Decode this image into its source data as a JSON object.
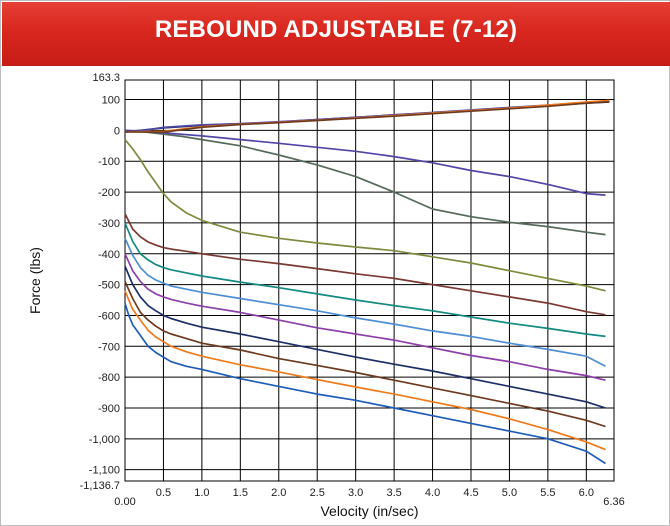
{
  "header": {
    "title": "REBOUND ADJUSTABLE (7-12)"
  },
  "colors": {
    "banner": "#d8271f",
    "grid": "#000000"
  },
  "chart_data": {
    "type": "line",
    "title": "REBOUND ADJUSTABLE (7-12)",
    "xlabel": "Velocity (in/sec)",
    "ylabel": "Force (lbs)",
    "xlim": [
      0,
      6.36
    ],
    "ylim": [
      -1136.7,
      163.3
    ],
    "x_ticks": [
      0,
      0.5,
      1.0,
      1.5,
      2.0,
      2.5,
      3.0,
      3.5,
      4.0,
      4.5,
      5.0,
      5.5,
      6.0,
      6.36
    ],
    "x_tick_labels": [
      "0.00",
      "0.5",
      "1.0",
      "1.5",
      "2.0",
      "2.5",
      "3.0",
      "3.5",
      "4.0",
      "4.5",
      "5.0",
      "5.5",
      "6.0",
      "6.36"
    ],
    "y_ticks": [
      163.3,
      100,
      0,
      -100,
      -200,
      -300,
      -400,
      -500,
      -600,
      -700,
      -800,
      -900,
      -1000,
      -1100,
      -1136.7
    ],
    "y_tick_labels": [
      "163.3",
      "100",
      "0",
      "-100",
      "-200",
      "-300",
      "-400",
      "-500",
      "-600",
      "-700",
      "-800",
      "-900",
      "-1,000",
      "-1,100",
      "-1,136.7"
    ],
    "grid": true,
    "series": [
      {
        "color": "#1f5cb8",
        "x": [
          0,
          0.05,
          0.1,
          0.2,
          0.3,
          0.4,
          0.5,
          0.6,
          0.8,
          1.0,
          1.5,
          2,
          2.5,
          3,
          3.5,
          4,
          4.5,
          5,
          5.5,
          6,
          6.25
        ],
        "y": [
          -560,
          -600,
          -630,
          -665,
          -700,
          -720,
          -735,
          -750,
          -765,
          -775,
          -805,
          -830,
          -855,
          -875,
          -900,
          -925,
          -950,
          -975,
          -1000,
          -1040,
          -1080
        ]
      },
      {
        "color": "#f07a1a",
        "x": [
          0,
          0.1,
          0.2,
          0.3,
          0.4,
          0.5,
          0.6,
          0.8,
          1,
          1.5,
          2,
          2.5,
          3,
          3.5,
          4,
          4.5,
          5,
          5.5,
          6,
          6.25
        ],
        "y": [
          -520,
          -580,
          -615,
          -648,
          -670,
          -685,
          -700,
          -718,
          -732,
          -760,
          -783,
          -808,
          -832,
          -855,
          -880,
          -905,
          -935,
          -970,
          -1010,
          -1035
        ]
      },
      {
        "color": "#6e3a1e",
        "x": [
          0,
          0.1,
          0.2,
          0.3,
          0.4,
          0.5,
          0.6,
          0.8,
          1,
          1.5,
          2,
          2.5,
          3,
          3.5,
          4,
          4.5,
          5,
          5.5,
          6,
          6.25
        ],
        "y": [
          -490,
          -545,
          -590,
          -615,
          -635,
          -650,
          -660,
          -675,
          -690,
          -712,
          -740,
          -762,
          -785,
          -810,
          -835,
          -860,
          -885,
          -910,
          -940,
          -960
        ]
      },
      {
        "color": "#1c2f66",
        "x": [
          0,
          0.1,
          0.2,
          0.3,
          0.4,
          0.5,
          0.6,
          0.8,
          1,
          1.5,
          2,
          2.5,
          3,
          3.5,
          4,
          4.5,
          5,
          5.5,
          6,
          6.25
        ],
        "y": [
          -440,
          -500,
          -540,
          -568,
          -585,
          -600,
          -610,
          -625,
          -638,
          -660,
          -685,
          -710,
          -735,
          -758,
          -780,
          -805,
          -830,
          -855,
          -880,
          -900
        ]
      },
      {
        "color": "#8d3fa8",
        "x": [
          0,
          0.1,
          0.2,
          0.3,
          0.4,
          0.5,
          0.6,
          0.8,
          1,
          1.5,
          2,
          2.5,
          3,
          3.5,
          4,
          4.5,
          5,
          5.5,
          6,
          6.25
        ],
        "y": [
          -400,
          -455,
          -490,
          -515,
          -530,
          -540,
          -548,
          -560,
          -570,
          -590,
          -615,
          -640,
          -660,
          -680,
          -705,
          -730,
          -750,
          -775,
          -795,
          -810
        ]
      },
      {
        "color": "#4e8ed3",
        "x": [
          0,
          0.1,
          0.2,
          0.3,
          0.4,
          0.5,
          0.6,
          0.8,
          1,
          1.5,
          2,
          2.5,
          3,
          3.5,
          4,
          4.5,
          5,
          5.5,
          6,
          6.25
        ],
        "y": [
          -350,
          -405,
          -445,
          -470,
          -485,
          -495,
          -505,
          -515,
          -525,
          -545,
          -565,
          -585,
          -608,
          -628,
          -650,
          -668,
          -690,
          -710,
          -732,
          -765
        ]
      },
      {
        "color": "#138a82",
        "x": [
          0,
          0.1,
          0.2,
          0.3,
          0.4,
          0.5,
          0.6,
          0.8,
          1,
          1.5,
          2,
          2.5,
          3,
          3.5,
          4,
          4.5,
          5,
          5.5,
          6,
          6.25
        ],
        "y": [
          -300,
          -360,
          -400,
          -420,
          -435,
          -445,
          -452,
          -462,
          -472,
          -492,
          -510,
          -530,
          -550,
          -568,
          -585,
          -605,
          -625,
          -642,
          -660,
          -668
        ]
      },
      {
        "color": "#7a3a32",
        "x": [
          0,
          0.1,
          0.2,
          0.3,
          0.4,
          0.5,
          0.6,
          0.8,
          1,
          1.5,
          2,
          2.5,
          3,
          3.5,
          4,
          4.5,
          5,
          5.5,
          6,
          6.25
        ],
        "y": [
          -270,
          -320,
          -345,
          -362,
          -372,
          -380,
          -385,
          -392,
          -400,
          -418,
          -432,
          -448,
          -465,
          -480,
          -500,
          -520,
          -540,
          -560,
          -588,
          -598
        ]
      },
      {
        "color": "#7d8b3e",
        "x": [
          0,
          0.1,
          0.2,
          0.3,
          0.4,
          0.5,
          0.6,
          0.8,
          1,
          1.5,
          2,
          2.5,
          3,
          3.5,
          4,
          4.5,
          5,
          5.5,
          6,
          6.25
        ],
        "y": [
          -30,
          -60,
          -95,
          -135,
          -170,
          -205,
          -232,
          -268,
          -292,
          -330,
          -350,
          -365,
          -378,
          -390,
          -410,
          -430,
          -455,
          -480,
          -505,
          -520
        ]
      },
      {
        "color": "#556b5a",
        "x": [
          0,
          0.25,
          0.5,
          0.75,
          1,
          1.5,
          2,
          2.5,
          3,
          3.5,
          4,
          4.5,
          5,
          5.5,
          6,
          6.25
        ],
        "y": [
          0,
          -5,
          -12,
          -20,
          -30,
          -50,
          -80,
          -112,
          -150,
          -200,
          -255,
          -280,
          -298,
          -312,
          -330,
          -338
        ]
      },
      {
        "color": "#5145a6",
        "x": [
          0,
          0.5,
          1,
          1.5,
          2,
          2.5,
          3,
          3.5,
          4,
          4.5,
          5,
          5.5,
          6,
          6.25
        ],
        "y": [
          0,
          -8,
          -18,
          -30,
          -42,
          -55,
          -68,
          -85,
          -105,
          -130,
          -150,
          -175,
          -205,
          -210
        ]
      },
      {
        "color": "#1c2f66",
        "x": [
          0,
          0.5,
          1,
          1.5,
          2,
          2.5,
          3,
          3.5,
          4,
          4.5,
          5,
          5.5,
          6,
          6.3
        ],
        "y": [
          -5,
          8,
          16,
          20,
          27,
          35,
          42,
          50,
          57,
          65,
          72,
          80,
          88,
          92
        ]
      },
      {
        "color": "#5145a6",
        "x": [
          0,
          0.3,
          0.5,
          1,
          1.5,
          2,
          2.5,
          3,
          3.5,
          4,
          4.5,
          5,
          5.5,
          6,
          6.3
        ],
        "y": [
          -5,
          2,
          10,
          18,
          22,
          28,
          35,
          42,
          50,
          58,
          66,
          74,
          82,
          90,
          95
        ]
      },
      {
        "color": "#f07a1a",
        "x": [
          0,
          0.5,
          1,
          1.5,
          2,
          2.5,
          3,
          3.5,
          4,
          4.5,
          5,
          5.5,
          6,
          6.3
        ],
        "y": [
          -5,
          -3,
          12,
          20,
          26,
          33,
          40,
          48,
          56,
          64,
          72,
          82,
          92,
          97
        ]
      },
      {
        "color": "#6e3a1e",
        "x": [
          0,
          0.5,
          1,
          1.5,
          2,
          2.5,
          3,
          3.5,
          4,
          4.5,
          5,
          5.5,
          6,
          6.3
        ],
        "y": [
          -5,
          -6,
          10,
          19,
          25,
          32,
          39,
          46,
          54,
          62,
          70,
          78,
          88,
          93
        ]
      }
    ]
  }
}
